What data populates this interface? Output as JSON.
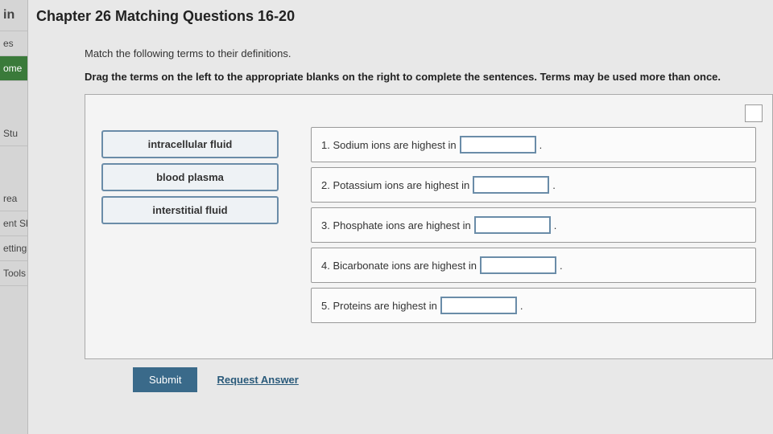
{
  "sidebar": {
    "items": [
      {
        "label": "in"
      },
      {
        "label": "es"
      },
      {
        "label": "ome"
      },
      {
        "label": "Stu"
      },
      {
        "label": "rea"
      },
      {
        "label": "ent Sh"
      },
      {
        "label": "ettings"
      },
      {
        "label": "Tools"
      }
    ]
  },
  "page": {
    "title": "Chapter 26 Matching Questions 16-20",
    "intro": "Match the following terms to their definitions.",
    "instruction": "Drag the terms on the left to the appropriate blanks on the right to complete the sentences. Terms may be used more than once."
  },
  "terms": [
    {
      "label": "intracellular fluid"
    },
    {
      "label": "blood plasma"
    },
    {
      "label": "interstitial fluid"
    }
  ],
  "sentences": [
    {
      "prefix": "1. Sodium ions are highest in",
      "suffix": "."
    },
    {
      "prefix": "2. Potassium ions are highest in",
      "suffix": "."
    },
    {
      "prefix": "3. Phosphate ions are highest in",
      "suffix": "."
    },
    {
      "prefix": "4. Bicarbonate ions are highest in",
      "suffix": "."
    },
    {
      "prefix": "5. Proteins are highest in",
      "suffix": "."
    }
  ],
  "buttons": {
    "submit": "Submit",
    "request": "Request Answer"
  }
}
